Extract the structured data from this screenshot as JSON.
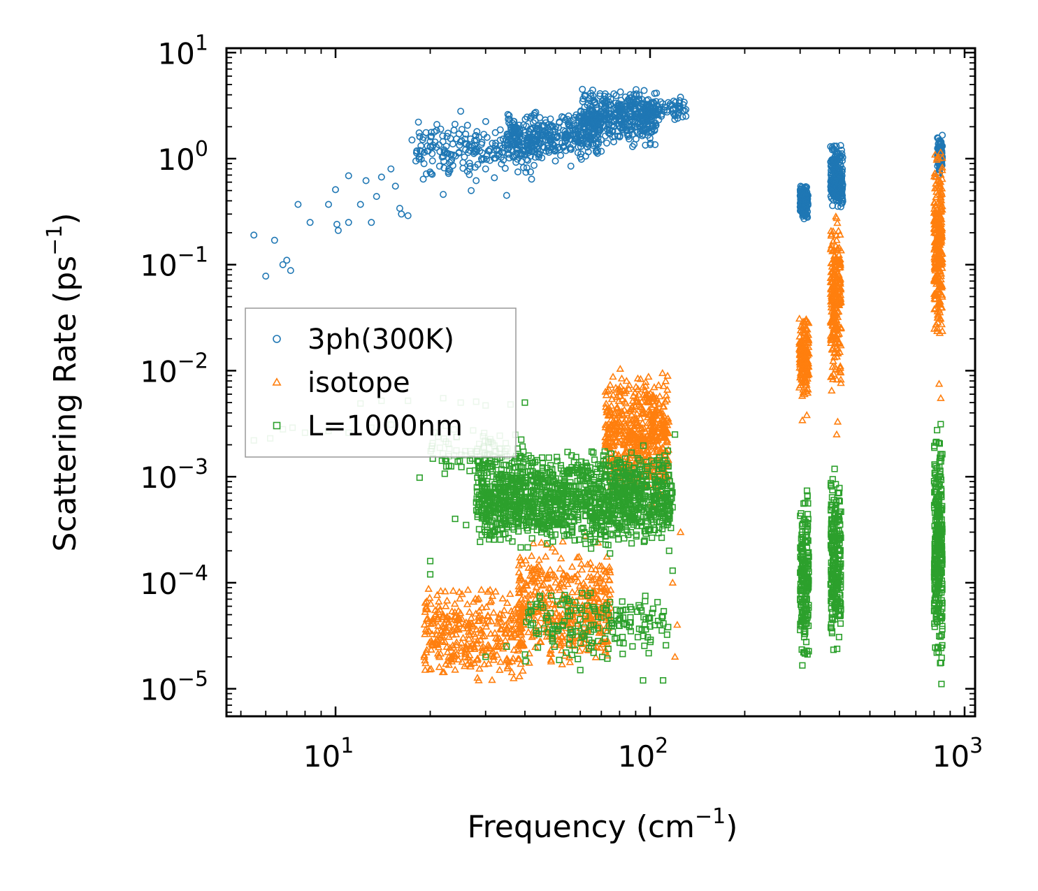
{
  "chart_data": {
    "type": "scatter",
    "xscale": "log",
    "yscale": "log",
    "xlim": [
      4.5,
      1080
    ],
    "ylim": [
      5.5e-06,
      11
    ],
    "xlabel": "Frequency (cm",
    "xlabel_sup": "−1",
    "xlabel_end": ")",
    "ylabel": "Scattering Rate (ps",
    "ylabel_sup": "−1",
    "ylabel_end": ")",
    "x_ticks": [
      {
        "value": 10,
        "base": "10",
        "exp": "1"
      },
      {
        "value": 100,
        "base": "10",
        "exp": "2"
      },
      {
        "value": 1000,
        "base": "10",
        "exp": "3"
      }
    ],
    "y_ticks": [
      {
        "value": 10,
        "base": "10",
        "exp": "1"
      },
      {
        "value": 1,
        "base": "10",
        "exp": "0"
      },
      {
        "value": 0.1,
        "base": "10",
        "exp": "−1"
      },
      {
        "value": 0.01,
        "base": "10",
        "exp": "−2"
      },
      {
        "value": 0.001,
        "base": "10",
        "exp": "−3"
      },
      {
        "value": 0.0001,
        "base": "10",
        "exp": "−4"
      },
      {
        "value": 1e-05,
        "base": "10",
        "exp": "−5"
      }
    ],
    "legend_position": "center-left",
    "series": [
      {
        "name": "3ph(300K)",
        "marker": "circle",
        "color": "#1f77b4",
        "points": [
          [
            5.5,
            0.19
          ],
          [
            6.0,
            0.078
          ],
          [
            6.4,
            0.17
          ],
          [
            6.8,
            0.1
          ],
          [
            7.0,
            0.11
          ],
          [
            7.2,
            0.088
          ],
          [
            7.6,
            0.37
          ],
          [
            8.3,
            0.25
          ],
          [
            9.5,
            0.37
          ],
          [
            10.0,
            0.51
          ],
          [
            10.1,
            0.24
          ],
          [
            10.2,
            0.21
          ],
          [
            11.0,
            0.25
          ],
          [
            11.0,
            0.69
          ],
          [
            12.0,
            0.37
          ],
          [
            12.5,
            0.62
          ],
          [
            13.0,
            0.25
          ],
          [
            13.5,
            0.44
          ],
          [
            14.0,
            0.67
          ],
          [
            15.0,
            0.8
          ],
          [
            15.5,
            0.55
          ],
          [
            16.0,
            0.34
          ],
          [
            16.2,
            0.3
          ],
          [
            17.0,
            0.29
          ],
          [
            17.5,
            1.5
          ],
          [
            18.0,
            0.95
          ],
          [
            19.0,
            0.64
          ],
          [
            20.0,
            1.3
          ],
          [
            21.0,
            2.1
          ],
          [
            22.0,
            0.46
          ],
          [
            25.0,
            2.8
          ],
          [
            27.0,
            0.5
          ],
          [
            28.0,
            0.62
          ],
          [
            30.0,
            0.8
          ],
          [
            32.0,
            0.66
          ],
          [
            35.0,
            0.45
          ],
          [
            38.0,
            0.75
          ],
          [
            42.0,
            0.64
          ],
          [
            50.0,
            0.95
          ],
          [
            56.0,
            0.85
          ],
          [
            88.0,
            1.3
          ],
          [
            100.0,
            2.3
          ],
          [
            125.0,
            3.8
          ],
          [
            130.0,
            2.9
          ]
        ],
        "clusters": [
          {
            "x": [
              18,
              45
            ],
            "y": [
              0.6,
              2.5
            ],
            "n": 220
          },
          {
            "x": [
              35,
              70
            ],
            "y": [
              0.9,
              3.0
            ],
            "n": 330
          },
          {
            "x": [
              60,
              105
            ],
            "y": [
              1.2,
              5.2
            ],
            "n": 420
          },
          {
            "x": [
              100,
              130
            ],
            "y": [
              2.2,
              3.8
            ],
            "n": 60
          },
          {
            "x": [
              300,
              318
            ],
            "y": [
              0.24,
              0.65
            ],
            "n": 150
          },
          {
            "x": [
              375,
              410
            ],
            "y": [
              0.28,
              1.6
            ],
            "n": 220
          },
          {
            "x": [
              820,
              850
            ],
            "y": [
              0.6,
              1.9
            ],
            "n": 90
          }
        ]
      },
      {
        "name": "isotope",
        "marker": "triangle",
        "color": "#ff7f0e",
        "points": [
          [
            120,
            2e-05
          ],
          [
            122,
            4e-05
          ],
          [
            118,
            0.0001
          ],
          [
            125,
            0.0003
          ],
          [
            305,
            0.0034
          ],
          [
            315,
            0.0038
          ],
          [
            395,
            0.0033
          ],
          [
            392,
            0.0025
          ],
          [
            830,
            0.0075
          ],
          [
            840,
            0.0055
          ]
        ],
        "clusters": [
          {
            "x": [
              19,
              40
            ],
            "y": [
              1e-05,
              0.00012
            ],
            "n": 360
          },
          {
            "x": [
              38,
              75
            ],
            "y": [
              1.2e-05,
              0.0003
            ],
            "n": 420
          },
          {
            "x": [
              72,
              115
            ],
            "y": [
              0.0005,
              0.013
            ],
            "n": 560
          },
          {
            "x": [
              298,
              320
            ],
            "y": [
              0.0045,
              0.045
            ],
            "n": 170
          },
          {
            "x": [
              375,
              405
            ],
            "y": [
              0.005,
              0.36
            ],
            "n": 240
          },
          {
            "x": [
              800,
              850
            ],
            "y": [
              0.014,
              1.5
            ],
            "n": 280
          }
        ]
      },
      {
        "name": "L=1000nm",
        "marker": "square",
        "color": "#2ca02c",
        "points": [
          [
            5.5,
            0.0022
          ],
          [
            6.2,
            0.0023
          ],
          [
            6.8,
            0.0028
          ],
          [
            7.3,
            0.0029
          ],
          [
            8.0,
            0.0026
          ],
          [
            9.5,
            0.0027
          ],
          [
            11.0,
            0.0026
          ],
          [
            12.0,
            0.0049
          ],
          [
            13.0,
            0.0029
          ],
          [
            14.0,
            0.0052
          ],
          [
            15.0,
            0.0031
          ],
          [
            17.0,
            0.0052
          ],
          [
            18.5,
            0.00098
          ],
          [
            20.0,
            0.00016
          ],
          [
            20.0,
            0.00012
          ],
          [
            22.0,
            0.0055
          ],
          [
            25.0,
            0.005
          ],
          [
            28.0,
            0.0051
          ],
          [
            30.0,
            0.0047
          ],
          [
            36.0,
            0.0048
          ],
          [
            40.0,
            0.005
          ],
          [
            24.0,
            0.0004
          ],
          [
            26.0,
            0.00035
          ],
          [
            30.0,
            2e-05
          ],
          [
            35.0,
            2.5e-05
          ],
          [
            60.0,
            1.5e-05
          ],
          [
            95.0,
            1.2e-05
          ],
          [
            110.0,
            1.2e-05
          ],
          [
            120.0,
            0.0025
          ],
          [
            115.0,
            0.0002
          ],
          [
            118.0,
            0.00013
          ]
        ],
        "clusters": [
          {
            "x": [
              20,
              40
            ],
            "y": [
              0.0009,
              0.0035
            ],
            "n": 80
          },
          {
            "x": [
              28,
              118
            ],
            "y": [
              0.00018,
              0.0022
            ],
            "n": 1400
          },
          {
            "x": [
              40,
              115
            ],
            "y": [
              1.5e-05,
              0.00012
            ],
            "n": 180
          },
          {
            "x": [
              300,
              320
            ],
            "y": [
              1.3e-05,
              0.001
            ],
            "n": 190
          },
          {
            "x": [
              375,
              405
            ],
            "y": [
              1.3e-05,
              0.0019
            ],
            "n": 230
          },
          {
            "x": [
              800,
              850
            ],
            "y": [
              1e-05,
              0.0042
            ],
            "n": 320
          }
        ]
      }
    ]
  }
}
